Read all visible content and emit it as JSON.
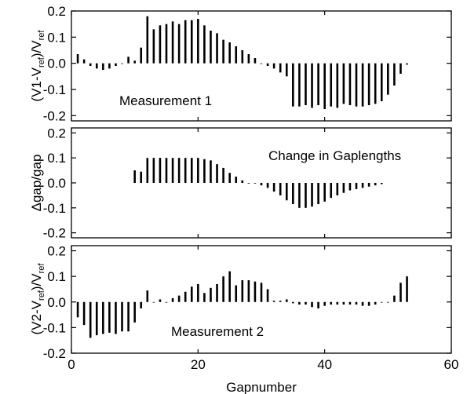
{
  "chart_data": [
    {
      "type": "bar",
      "ylabel": "(V1-Vref)/Vref",
      "ylabel_parts": [
        "(V1-V",
        "ref",
        ")/V",
        "ref"
      ],
      "annotation": "Measurement 1",
      "ylim": [
        -0.22,
        0.2
      ],
      "yticks": [
        -0.2,
        -0.1,
        0.0,
        0.1,
        0.2
      ],
      "ytick_labels": [
        "-0.2",
        "-0.1",
        "0.0",
        "0.1",
        "0.2"
      ],
      "xlim": [
        0,
        60
      ],
      "grid": false,
      "x": [
        1,
        2,
        3,
        4,
        5,
        6,
        7,
        8,
        9,
        10,
        11,
        12,
        13,
        14,
        15,
        16,
        17,
        18,
        19,
        20,
        21,
        22,
        23,
        24,
        25,
        26,
        27,
        28,
        29,
        30,
        31,
        32,
        33,
        34,
        35,
        36,
        37,
        38,
        39,
        40,
        41,
        42,
        43,
        44,
        45,
        46,
        47,
        48,
        49,
        50,
        51,
        52,
        53
      ],
      "values": [
        0.035,
        0.015,
        -0.01,
        -0.02,
        -0.025,
        -0.02,
        -0.01,
        0.0,
        0.025,
        0.01,
        0.06,
        0.18,
        0.13,
        0.145,
        0.15,
        0.16,
        0.15,
        0.165,
        0.165,
        0.17,
        0.145,
        0.125,
        0.115,
        0.09,
        0.08,
        0.065,
        0.05,
        0.035,
        0.02,
        0.0,
        -0.01,
        -0.02,
        -0.035,
        -0.05,
        -0.165,
        -0.165,
        -0.16,
        -0.17,
        -0.16,
        -0.175,
        -0.165,
        -0.17,
        -0.155,
        -0.16,
        -0.165,
        -0.165,
        -0.16,
        -0.155,
        -0.145,
        -0.12,
        -0.085,
        -0.04,
        -0.005
      ]
    },
    {
      "type": "bar",
      "ylabel": "Δgap/gap",
      "annotation": "Change in Gaplengths",
      "ylim": [
        -0.22,
        0.22
      ],
      "yticks": [
        -0.2,
        -0.1,
        0.0,
        0.1,
        0.2
      ],
      "ytick_labels": [
        "-0.2",
        "-0.1",
        "0.0",
        "0.1",
        "0.2"
      ],
      "xlim": [
        0,
        60
      ],
      "grid": false,
      "x": [
        10,
        11,
        12,
        13,
        14,
        15,
        16,
        17,
        18,
        19,
        20,
        21,
        22,
        23,
        24,
        25,
        26,
        27,
        28,
        29,
        30,
        31,
        32,
        33,
        34,
        35,
        36,
        37,
        38,
        39,
        40,
        41,
        42,
        43,
        44,
        45,
        46,
        47,
        48,
        49
      ],
      "values": [
        0.05,
        0.045,
        0.1,
        0.1,
        0.1,
        0.1,
        0.1,
        0.1,
        0.1,
        0.1,
        0.1,
        0.095,
        0.09,
        0.075,
        0.06,
        0.04,
        0.025,
        0.01,
        0.0,
        0.0,
        -0.01,
        -0.02,
        -0.035,
        -0.05,
        -0.07,
        -0.085,
        -0.1,
        -0.1,
        -0.095,
        -0.085,
        -0.075,
        -0.06,
        -0.05,
        -0.04,
        -0.03,
        -0.025,
        -0.02,
        -0.015,
        -0.01,
        -0.005
      ]
    },
    {
      "type": "bar",
      "ylabel": "(V2-Vref)/Vref",
      "ylabel_parts": [
        "(V2-V",
        "ref",
        ")/V",
        "ref"
      ],
      "annotation": "Measurement 2",
      "xlabel": "Gapnumber",
      "ylim": [
        -0.2,
        0.22
      ],
      "yticks": [
        -0.2,
        -0.1,
        0.0,
        0.1,
        0.2
      ],
      "ytick_labels": [
        "-0.2",
        "-0.1",
        "0.0",
        "0.1",
        "0.2"
      ],
      "xlim": [
        0,
        60
      ],
      "xticks": [
        0,
        20,
        40,
        60
      ],
      "xtick_labels": [
        "0",
        "20",
        "40",
        "60"
      ],
      "grid": false,
      "x": [
        1,
        2,
        3,
        4,
        5,
        6,
        7,
        8,
        9,
        10,
        11,
        12,
        13,
        14,
        15,
        16,
        17,
        18,
        19,
        20,
        21,
        22,
        23,
        24,
        25,
        26,
        27,
        28,
        29,
        30,
        31,
        32,
        33,
        34,
        35,
        36,
        37,
        38,
        39,
        40,
        41,
        42,
        43,
        44,
        45,
        46,
        47,
        48,
        49,
        50,
        51,
        52,
        53
      ],
      "values": [
        -0.06,
        -0.09,
        -0.14,
        -0.13,
        -0.125,
        -0.12,
        -0.125,
        -0.115,
        -0.115,
        -0.08,
        -0.025,
        0.045,
        0.0,
        0.01,
        0.0,
        0.015,
        0.025,
        0.04,
        0.06,
        0.07,
        0.035,
        0.055,
        0.07,
        0.1,
        0.12,
        0.065,
        0.085,
        0.085,
        0.08,
        0.075,
        0.05,
        0.005,
        0.005,
        0.01,
        -0.005,
        -0.01,
        -0.01,
        -0.02,
        -0.025,
        -0.015,
        -0.01,
        -0.01,
        -0.01,
        -0.01,
        -0.01,
        -0.015,
        -0.015,
        -0.01,
        0.0,
        0.0,
        0.025,
        0.075,
        0.1
      ]
    }
  ]
}
